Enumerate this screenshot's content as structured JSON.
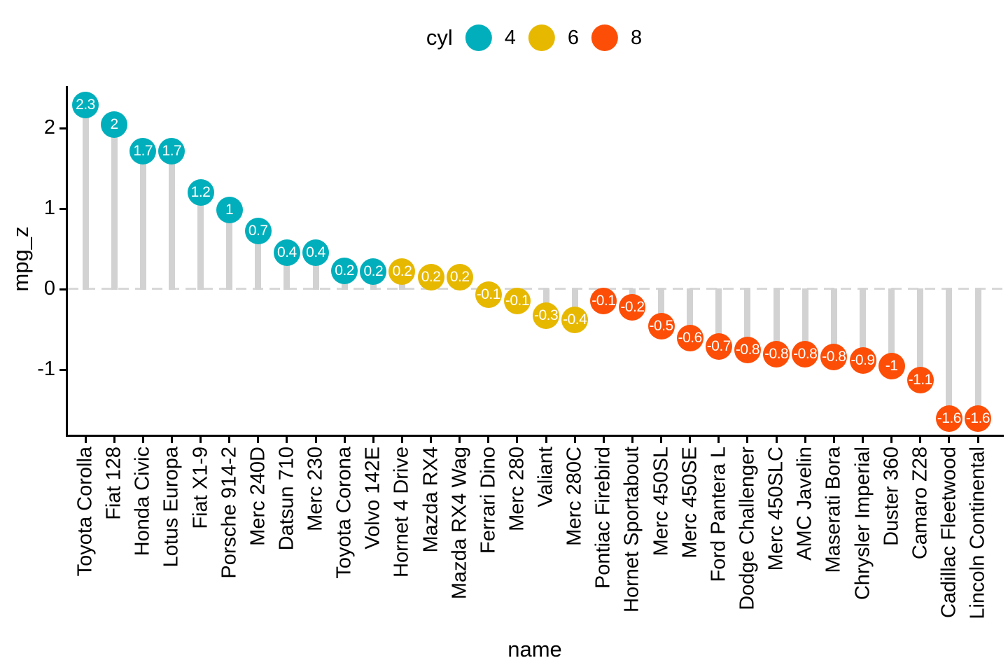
{
  "chart_data": {
    "type": "bar",
    "subtype": "lollipop-dot-chart",
    "title": "",
    "xlabel": "name",
    "ylabel": "mpg_z",
    "ylim": [
      -1.8,
      2.55
    ],
    "grid": false,
    "zero_reference_line": "dashed",
    "yticks": [
      {
        "value": 2,
        "label": "2"
      },
      {
        "value": 1,
        "label": "1"
      },
      {
        "value": 0,
        "label": "0"
      },
      {
        "value": -1,
        "label": "-1"
      }
    ],
    "legend": {
      "title": "cyl",
      "position": "top",
      "entries": [
        {
          "label": "4",
          "color": "#00AFBB"
        },
        {
          "label": "6",
          "color": "#E7B800"
        },
        {
          "label": "8",
          "color": "#FC4E07"
        }
      ]
    },
    "series_colors": {
      "4": "#00AFBB",
      "6": "#E7B800",
      "8": "#FC4E07"
    },
    "points": [
      {
        "name": "Toyota Corolla",
        "cyl": "4",
        "value": 2.29,
        "label": "2.3"
      },
      {
        "name": "Fiat 128",
        "cyl": "4",
        "value": 2.04,
        "label": "2"
      },
      {
        "name": "Honda Civic",
        "cyl": "4",
        "value": 1.71,
        "label": "1.7"
      },
      {
        "name": "Lotus Europa",
        "cyl": "4",
        "value": 1.71,
        "label": "1.7"
      },
      {
        "name": "Fiat X1-9",
        "cyl": "4",
        "value": 1.2,
        "label": "1.2"
      },
      {
        "name": "Porsche 914-2",
        "cyl": "4",
        "value": 0.98,
        "label": "1"
      },
      {
        "name": "Merc 240D",
        "cyl": "4",
        "value": 0.72,
        "label": "0.7"
      },
      {
        "name": "Datsun 710",
        "cyl": "4",
        "value": 0.45,
        "label": "0.4"
      },
      {
        "name": "Merc 230",
        "cyl": "4",
        "value": 0.45,
        "label": "0.4"
      },
      {
        "name": "Toyota Corona",
        "cyl": "4",
        "value": 0.23,
        "label": "0.2"
      },
      {
        "name": "Volvo 142E",
        "cyl": "4",
        "value": 0.22,
        "label": "0.2"
      },
      {
        "name": "Hornet 4 Drive",
        "cyl": "6",
        "value": 0.22,
        "label": "0.2"
      },
      {
        "name": "Mazda RX4",
        "cyl": "6",
        "value": 0.15,
        "label": "0.2"
      },
      {
        "name": "Mazda RX4 Wag",
        "cyl": "6",
        "value": 0.15,
        "label": "0.2"
      },
      {
        "name": "Ferrari Dino",
        "cyl": "6",
        "value": -0.07,
        "label": "-0.1"
      },
      {
        "name": "Merc 280",
        "cyl": "6",
        "value": -0.15,
        "label": "-0.1"
      },
      {
        "name": "Valiant",
        "cyl": "6",
        "value": -0.33,
        "label": "-0.3"
      },
      {
        "name": "Merc 280C",
        "cyl": "6",
        "value": -0.38,
        "label": "-0.4"
      },
      {
        "name": "Pontiac Firebird",
        "cyl": "8",
        "value": -0.15,
        "label": "-0.1"
      },
      {
        "name": "Hornet Sportabout",
        "cyl": "8",
        "value": -0.23,
        "label": "-0.2"
      },
      {
        "name": "Merc 450SL",
        "cyl": "8",
        "value": -0.46,
        "label": "-0.5"
      },
      {
        "name": "Merc 450SE",
        "cyl": "8",
        "value": -0.61,
        "label": "-0.6"
      },
      {
        "name": "Ford Pantera L",
        "cyl": "8",
        "value": -0.71,
        "label": "-0.7"
      },
      {
        "name": "Dodge Challenger",
        "cyl": "8",
        "value": -0.76,
        "label": "-0.8"
      },
      {
        "name": "Merc 450SLC",
        "cyl": "8",
        "value": -0.81,
        "label": "-0.8"
      },
      {
        "name": "AMC Javelin",
        "cyl": "8",
        "value": -0.81,
        "label": "-0.8"
      },
      {
        "name": "Maserati Bora",
        "cyl": "8",
        "value": -0.84,
        "label": "-0.8"
      },
      {
        "name": "Chrysler Imperial",
        "cyl": "8",
        "value": -0.89,
        "label": "-0.9"
      },
      {
        "name": "Duster 360",
        "cyl": "8",
        "value": -0.96,
        "label": "-1"
      },
      {
        "name": "Camaro Z28",
        "cyl": "8",
        "value": -1.13,
        "label": "-1.1"
      },
      {
        "name": "Cadillac Fleetwood",
        "cyl": "8",
        "value": -1.61,
        "label": "-1.6"
      },
      {
        "name": "Lincoln Continental",
        "cyl": "8",
        "value": -1.61,
        "label": "-1.6"
      }
    ]
  },
  "styles": {
    "stem_color": "#d2d2d2",
    "zero_line_color": "#d8d8d8",
    "axis_color": "#000000",
    "dot_label_color": "#ffffff",
    "background": "#ffffff"
  }
}
